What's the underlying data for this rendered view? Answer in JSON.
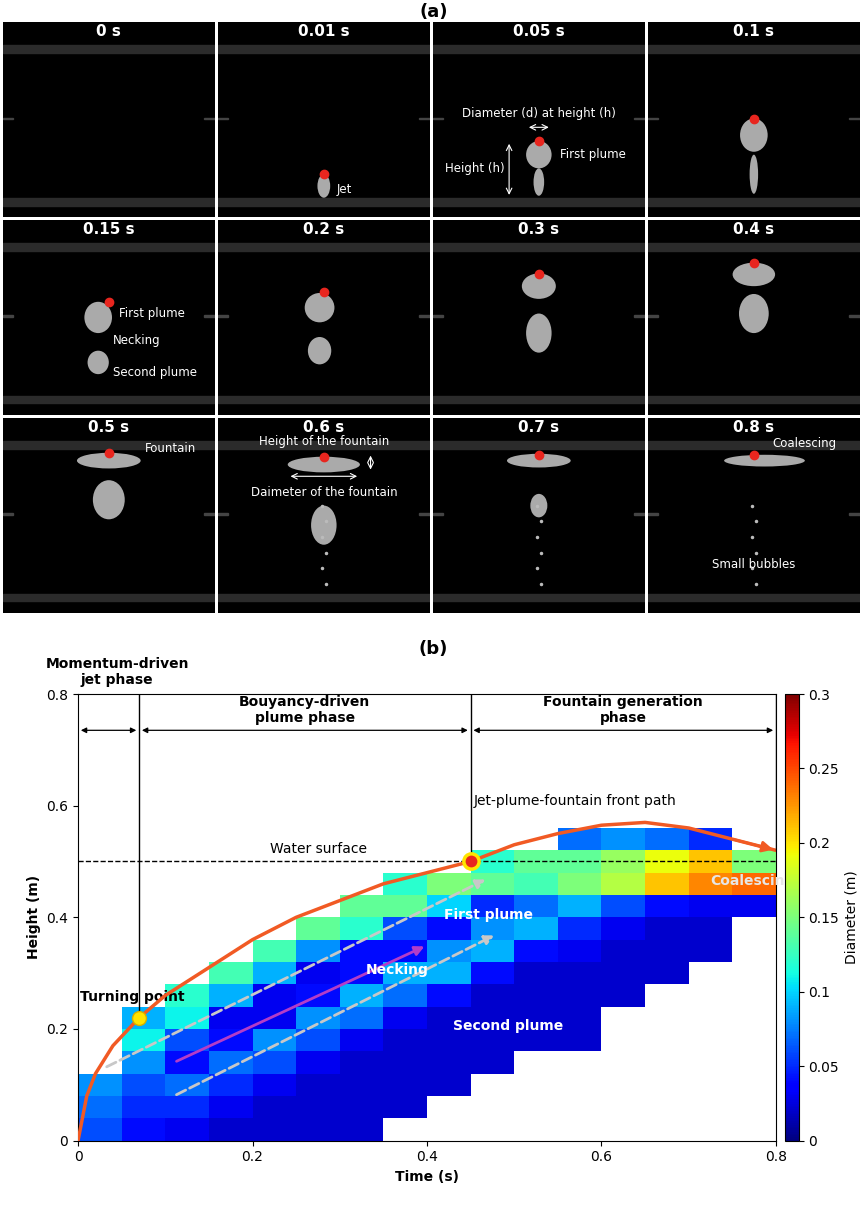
{
  "panel_a": {
    "label": "(a)",
    "frames": [
      {
        "time": "0 s",
        "labels": []
      },
      {
        "time": "0.01 s",
        "labels": [
          "Jet"
        ]
      },
      {
        "time": "0.05 s",
        "labels": [
          "Diameter (d) at height (h)",
          "First plume",
          "Height (h)"
        ]
      },
      {
        "time": "0.1 s",
        "labels": []
      },
      {
        "time": "0.15 s",
        "labels": [
          "First plume",
          "Necking",
          "Second plume"
        ]
      },
      {
        "time": "0.2 s",
        "labels": []
      },
      {
        "time": "0.3 s",
        "labels": []
      },
      {
        "time": "0.4 s",
        "labels": []
      },
      {
        "time": "0.5 s",
        "labels": [
          "Fountain"
        ]
      },
      {
        "time": "0.6 s",
        "labels": [
          "Height of the fountain",
          "Daimeter of the fountain"
        ]
      },
      {
        "time": "0.7 s",
        "labels": []
      },
      {
        "time": "0.8 s",
        "labels": [
          "Coalescing",
          "Small bubbles"
        ]
      }
    ]
  },
  "chart_data": {
    "type": "heatmap",
    "title": "(b)",
    "x_label": "Time (s)",
    "y_label": "Height (m)",
    "xlim": [
      0,
      0.8
    ],
    "ylim": [
      0,
      0.8
    ],
    "xticks": [
      0,
      0.2,
      0.4,
      0.6,
      0.8
    ],
    "yticks": [
      0,
      0.2,
      0.4,
      0.6,
      0.8
    ],
    "time_edges": [
      0,
      0.05,
      0.1,
      0.15,
      0.2,
      0.25,
      0.3,
      0.35,
      0.4,
      0.45,
      0.5,
      0.55,
      0.6,
      0.65,
      0.7,
      0.75,
      0.8
    ],
    "height_edges": [
      0,
      0.04,
      0.08,
      0.12,
      0.16,
      0.2,
      0.24,
      0.28,
      0.32,
      0.36,
      0.4,
      0.44,
      0.48,
      0.52,
      0.56,
      0.6
    ],
    "diameter": [
      [
        0.06,
        0.07,
        0.08,
        null,
        null,
        null,
        null,
        null,
        null,
        null,
        null,
        null,
        null,
        null,
        null
      ],
      [
        0.04,
        0.05,
        0.06,
        0.08,
        0.11,
        0.09,
        null,
        null,
        null,
        null,
        null,
        null,
        null,
        null,
        null
      ],
      [
        0.03,
        0.05,
        0.07,
        0.04,
        0.06,
        0.11,
        0.12,
        null,
        null,
        null,
        null,
        null,
        null,
        null,
        null
      ],
      [
        0.02,
        0.03,
        0.05,
        0.07,
        0.04,
        0.03,
        0.09,
        0.13,
        null,
        null,
        null,
        null,
        null,
        null,
        null
      ],
      [
        0.02,
        0.02,
        0.03,
        0.06,
        0.08,
        0.03,
        0.03,
        0.09,
        0.13,
        null,
        null,
        null,
        null,
        null,
        null
      ],
      [
        0.02,
        0.02,
        0.02,
        0.03,
        0.06,
        0.08,
        0.04,
        0.03,
        0.08,
        0.14,
        null,
        null,
        null,
        null,
        null
      ],
      [
        0.02,
        0.02,
        0.02,
        0.02,
        0.03,
        0.07,
        0.09,
        0.04,
        0.04,
        0.12,
        0.14,
        null,
        null,
        null,
        null
      ],
      [
        null,
        0.02,
        0.02,
        0.02,
        0.02,
        0.03,
        0.07,
        0.09,
        0.04,
        0.06,
        0.14,
        0.12,
        null,
        null,
        null
      ],
      [
        null,
        null,
        0.02,
        0.02,
        0.02,
        0.02,
        0.04,
        0.09,
        0.08,
        0.04,
        0.1,
        0.15,
        null,
        null,
        null
      ],
      [
        null,
        null,
        null,
        0.02,
        0.02,
        0.02,
        0.02,
        0.04,
        0.09,
        0.08,
        0.05,
        0.14,
        0.12,
        null,
        null
      ],
      [
        null,
        null,
        null,
        null,
        0.02,
        0.02,
        0.02,
        0.02,
        0.04,
        0.09,
        0.07,
        0.13,
        0.14,
        null,
        null
      ],
      [
        null,
        null,
        null,
        null,
        0.02,
        0.02,
        0.02,
        0.02,
        0.03,
        0.05,
        0.09,
        0.15,
        0.14,
        0.07,
        null
      ],
      [
        null,
        null,
        null,
        null,
        null,
        null,
        0.02,
        0.02,
        0.02,
        0.03,
        0.06,
        0.17,
        0.16,
        0.08,
        null
      ],
      [
        null,
        null,
        null,
        null,
        null,
        null,
        null,
        0.02,
        0.02,
        0.02,
        0.04,
        0.21,
        0.19,
        0.07,
        null
      ],
      [
        null,
        null,
        null,
        null,
        null,
        null,
        null,
        null,
        0.02,
        0.02,
        0.03,
        0.23,
        0.21,
        0.05,
        null
      ],
      [
        null,
        null,
        null,
        null,
        null,
        null,
        null,
        null,
        null,
        null,
        0.03,
        0.24,
        0.15,
        null,
        null
      ]
    ],
    "colorbar": {
      "label": "Diameter (m)",
      "range": [
        0,
        0.3
      ],
      "ticks": [
        0,
        0.05,
        0.1,
        0.15,
        0.2,
        0.25,
        0.3
      ]
    },
    "front_path": {
      "label": "Jet-plume-fountain front path",
      "color": "#f15a24",
      "x": [
        0,
        0.01,
        0.02,
        0.04,
        0.07,
        0.1,
        0.15,
        0.2,
        0.25,
        0.3,
        0.35,
        0.4,
        0.45,
        0.5,
        0.55,
        0.6,
        0.65,
        0.7,
        0.75,
        0.8
      ],
      "y": [
        0,
        0.08,
        0.12,
        0.17,
        0.22,
        0.26,
        0.31,
        0.36,
        0.4,
        0.43,
        0.46,
        0.48,
        0.5,
        0.53,
        0.55,
        0.565,
        0.57,
        0.56,
        0.54,
        0.52
      ]
    },
    "water_surface": {
      "label": "Water surface",
      "y": 0.5
    },
    "phases": [
      {
        "label": "Momentum-driven\njet phase",
        "start": 0,
        "end": 0.07
      },
      {
        "label": "Bouyancy-driven\nplume phase",
        "start": 0.07,
        "end": 0.45
      },
      {
        "label": "Fountain generation\nphase",
        "start": 0.45,
        "end": 0.8
      }
    ],
    "turning_point": {
      "label": "Turning point",
      "x": 0.07,
      "y": 0.22
    },
    "surface_point": {
      "x": 0.45,
      "y": 0.5
    },
    "annotations": [
      "First plume",
      "Necking",
      "Second plume",
      "Coalescing"
    ]
  }
}
